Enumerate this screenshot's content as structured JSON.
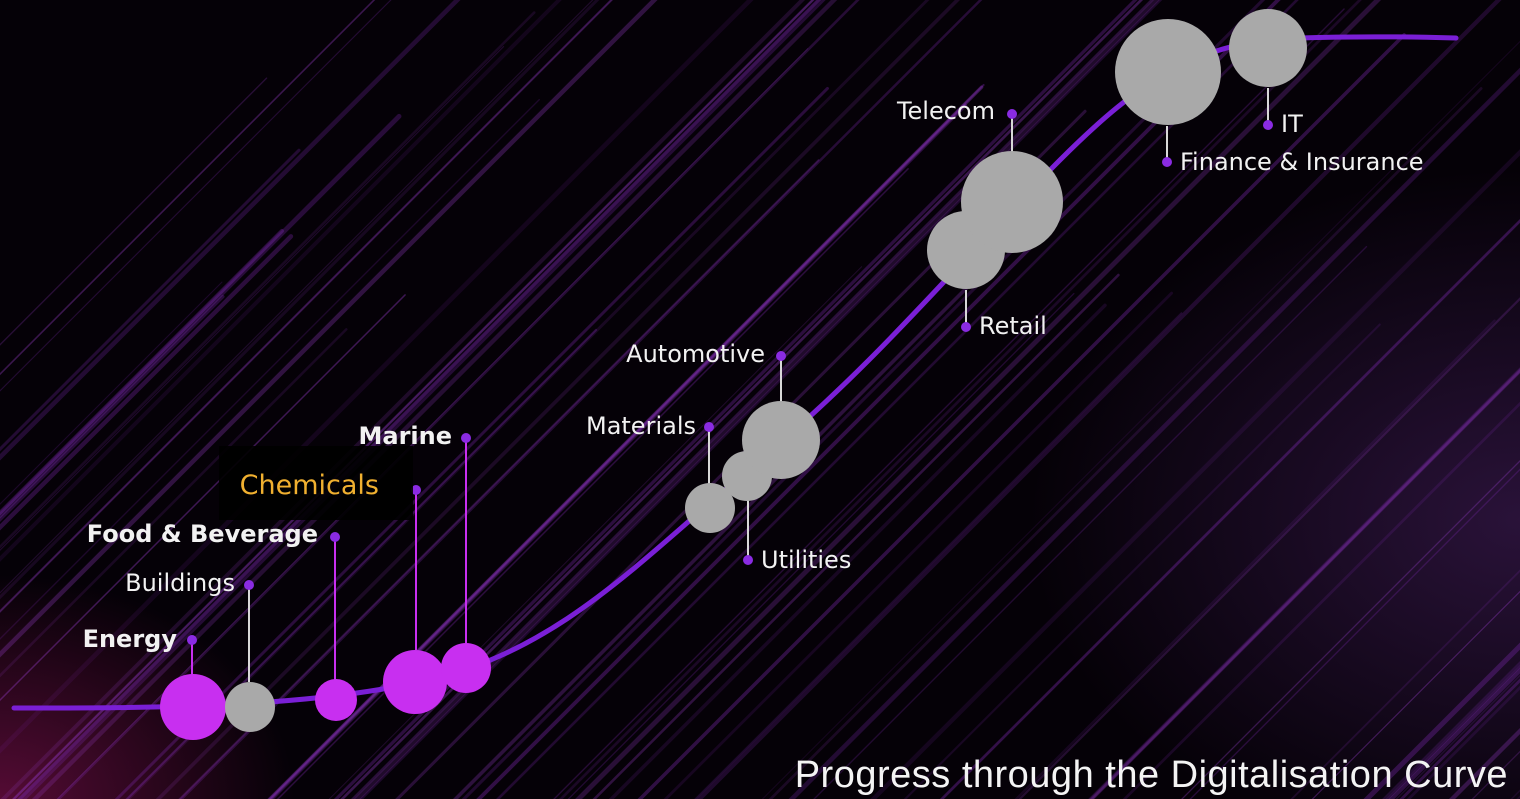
{
  "diagram": {
    "title": "Progress through the Digitalisation Curve",
    "colors": {
      "curve": "#7a1fd6",
      "highlight_bubble": "#c82ff0",
      "neutral_bubble": "#a9a9a9",
      "accent_label": "#f0b030",
      "marker": "#8a2be2"
    },
    "sectors": [
      {
        "id": "energy",
        "name": "Energy",
        "bold": true,
        "highlighted": true
      },
      {
        "id": "buildings",
        "name": "Buildings",
        "bold": false,
        "highlighted": false
      },
      {
        "id": "food-beverage",
        "name": "Food & Beverage",
        "bold": true,
        "highlighted": true
      },
      {
        "id": "chemicals",
        "name": "Chemicals",
        "bold": false,
        "highlighted": true,
        "accent": true
      },
      {
        "id": "marine",
        "name": "Marine",
        "bold": true,
        "highlighted": true
      },
      {
        "id": "materials",
        "name": "Materials",
        "bold": false,
        "highlighted": false
      },
      {
        "id": "automotive",
        "name": "Automotive",
        "bold": false,
        "highlighted": false
      },
      {
        "id": "utilities",
        "name": "Utilities",
        "bold": false,
        "highlighted": false
      },
      {
        "id": "retail",
        "name": "Retail",
        "bold": false,
        "highlighted": false
      },
      {
        "id": "telecom",
        "name": "Telecom",
        "bold": false,
        "highlighted": false
      },
      {
        "id": "finance-insurance",
        "name": "Finance & Insurance",
        "bold": false,
        "highlighted": false
      },
      {
        "id": "it",
        "name": "IT",
        "bold": false,
        "highlighted": false
      }
    ]
  }
}
